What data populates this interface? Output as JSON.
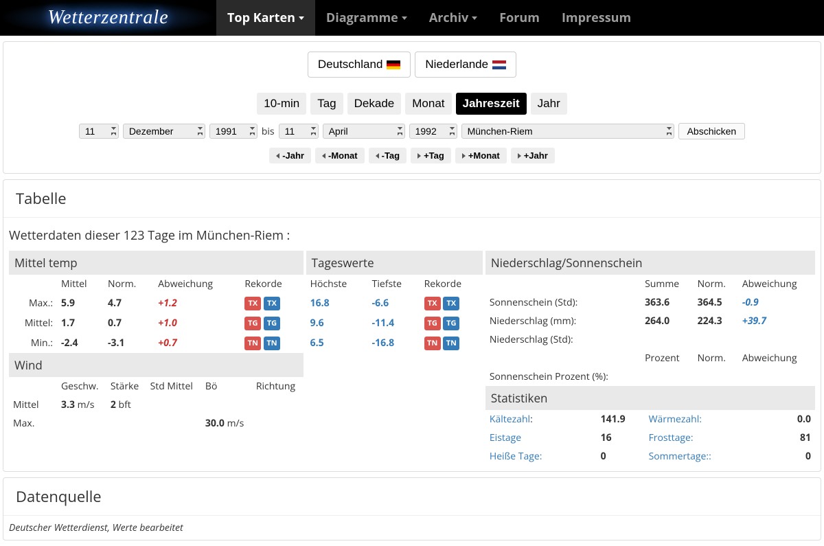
{
  "nav": {
    "logo": "Wetterzentrale",
    "items": [
      "Top Karten",
      "Diagramme",
      "Archiv",
      "Forum",
      "Impressum"
    ],
    "active": 0,
    "dropdowns": [
      true,
      true,
      true,
      false,
      false
    ]
  },
  "countries": {
    "de": "Deutschland",
    "nl": "Niederlande"
  },
  "periods": {
    "items": [
      "10-min",
      "Tag",
      "Dekade",
      "Monat",
      "Jahreszeit",
      "Jahr"
    ],
    "active": 4
  },
  "dateSel": {
    "day1": "11",
    "month1": "Dezember",
    "year1": "1991",
    "bis": "bis",
    "day2": "11",
    "month2": "April",
    "year2": "1992",
    "station": "München-Riem",
    "submit": "Abschicken"
  },
  "navBtns": [
    "-Jahr",
    "-Monat",
    "-Tag",
    "+Tag",
    "+Monat",
    "+Jahr"
  ],
  "tabelle": {
    "title": "Tabelle",
    "subtitle": "Wetterdaten dieser 123 Tage im München-Riem :",
    "mittelTemp": {
      "head": "Mittel temp",
      "cols": [
        "",
        "Mittel",
        "Norm.",
        "Abweichung",
        "Rekorde"
      ],
      "rows": [
        {
          "label": "Max.:",
          "mittel": "5.9",
          "norm": "4.7",
          "abw": "+1.2",
          "abwCls": "pos",
          "badge": "TX"
        },
        {
          "label": "Mittel:",
          "mittel": "1.7",
          "norm": "0.7",
          "abw": "+1.0",
          "abwCls": "pos",
          "badge": "TG"
        },
        {
          "label": "Min.:",
          "mittel": "-2.4",
          "norm": "-3.1",
          "abw": "+0.7",
          "abwCls": "pos",
          "badge": "TN"
        }
      ]
    },
    "tageswerte": {
      "head": "Tageswerte",
      "cols": [
        "Höchste",
        "Tiefste",
        "Rekorde"
      ],
      "rows": [
        {
          "hoch": "16.8",
          "tief": "-6.6",
          "badge": "TX"
        },
        {
          "hoch": "9.6",
          "tief": "-11.4",
          "badge": "TG"
        },
        {
          "hoch": "6.5",
          "tief": "-16.8",
          "badge": "TN"
        }
      ]
    },
    "nieder": {
      "head": "Niederschlag/Sonnenschein",
      "cols1": [
        "",
        "Summe",
        "Norm.",
        "Abweichung"
      ],
      "rows1": [
        {
          "label": "Sonnenschein (Std):",
          "sum": "363.6",
          "norm": "364.5",
          "abw": "-0.9",
          "abwCls": "neg"
        },
        {
          "label": "Niederschlag (mm):",
          "sum": "264.0",
          "norm": "224.3",
          "abw": "+39.7",
          "abwCls": "neg"
        },
        {
          "label": "Niederschlag (Std):",
          "sum": "",
          "norm": "",
          "abw": "",
          "abwCls": ""
        }
      ],
      "cols2": [
        "",
        "Prozent",
        "Norm.",
        "Abweichung"
      ],
      "rows2": [
        {
          "label": "Sonnenschein Prozent (%):",
          "sum": "",
          "norm": "",
          "abw": ""
        }
      ]
    },
    "wind": {
      "head": "Wind",
      "cols": [
        "",
        "Geschw.",
        "Stärke",
        "Std Mittel",
        "Bö",
        "Richtung"
      ],
      "rows": [
        {
          "label": "Mittel",
          "g": "3.3",
          "gUnit": " m/s",
          "s": "2",
          "sUnit": " bft",
          "std": "",
          "boe": "",
          "r": ""
        },
        {
          "label": "Max.",
          "g": "",
          "gUnit": "",
          "s": "",
          "sUnit": "",
          "std": "",
          "boe": "30.0",
          "boeUnit": " m/s",
          "r": ""
        }
      ]
    },
    "stats": {
      "head": "Statistiken",
      "left": [
        {
          "label": "Kältezahl",
          "colon": ":",
          "val": "141.9"
        },
        {
          "label": "Eistage",
          "colon": "",
          "val": "16"
        },
        {
          "label": "Heiße Tage:",
          "colon": "",
          "val": "0"
        }
      ],
      "right": [
        {
          "label": "Wärmezahl:",
          "val": "0.0"
        },
        {
          "label": "Frosttage:",
          "val": "81"
        },
        {
          "label": "Sommertage::",
          "val": "0"
        }
      ]
    }
  },
  "daten": {
    "title": "Datenquelle",
    "body": "Deutscher Wetterdienst, Werte bearbeitet"
  }
}
